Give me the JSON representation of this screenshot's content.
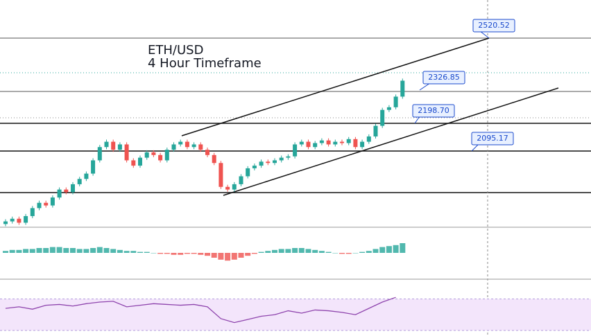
{
  "chart_data": {
    "type": "candlestick",
    "title": "ETH/USD",
    "subtitle": "4 Hour Timeframe",
    "ylim": [
      1808,
      2664
    ],
    "up_color": "#26a69a",
    "down_color": "#ef5350",
    "candles": [
      [
        1820,
        1838,
        1812,
        1830
      ],
      [
        1830,
        1848,
        1822,
        1840
      ],
      [
        1840,
        1848,
        1817,
        1825
      ],
      [
        1825,
        1858,
        1817,
        1850
      ],
      [
        1850,
        1888,
        1842,
        1880
      ],
      [
        1880,
        1908,
        1872,
        1900
      ],
      [
        1900,
        1908,
        1882,
        1890
      ],
      [
        1890,
        1928,
        1882,
        1920
      ],
      [
        1920,
        1958,
        1912,
        1950
      ],
      [
        1950,
        1958,
        1932,
        1940
      ],
      [
        1940,
        1978,
        1932,
        1970
      ],
      [
        1970,
        1998,
        1962,
        1990
      ],
      [
        1990,
        2018,
        1982,
        2010
      ],
      [
        2010,
        2068,
        2002,
        2060
      ],
      [
        2060,
        2118,
        2052,
        2110
      ],
      [
        2110,
        2138,
        2102,
        2130
      ],
      [
        2130,
        2138,
        2092,
        2100
      ],
      [
        2100,
        2128,
        2092,
        2120
      ],
      [
        2120,
        2128,
        2052,
        2060
      ],
      [
        2060,
        2068,
        2032,
        2040
      ],
      [
        2040,
        2078,
        2032,
        2070
      ],
      [
        2070,
        2098,
        2062,
        2090
      ],
      [
        2090,
        2098,
        2072,
        2080
      ],
      [
        2080,
        2088,
        2052,
        2060
      ],
      [
        2060,
        2108,
        2052,
        2100
      ],
      [
        2100,
        2128,
        2092,
        2120
      ],
      [
        2120,
        2138,
        2112,
        2130
      ],
      [
        2130,
        2138,
        2102,
        2110
      ],
      [
        2110,
        2128,
        2102,
        2120
      ],
      [
        2120,
        2128,
        2092,
        2100
      ],
      [
        2100,
        2108,
        2072,
        2080
      ],
      [
        2080,
        2088,
        2042,
        2050
      ],
      [
        2050,
        2058,
        1952,
        1960
      ],
      [
        1960,
        1968,
        1942,
        1950
      ],
      [
        1950,
        1978,
        1942,
        1970
      ],
      [
        1970,
        2008,
        1962,
        2000
      ],
      [
        2000,
        2038,
        1992,
        2030
      ],
      [
        2030,
        2048,
        2022,
        2040
      ],
      [
        2040,
        2063,
        2032,
        2055
      ],
      [
        2055,
        2063,
        2042,
        2050
      ],
      [
        2050,
        2068,
        2042,
        2060
      ],
      [
        2060,
        2078,
        2052,
        2070
      ],
      [
        2070,
        2083,
        2062,
        2075
      ],
      [
        2075,
        2128,
        2067,
        2120
      ],
      [
        2120,
        2138,
        2112,
        2130
      ],
      [
        2130,
        2138,
        2102,
        2110
      ],
      [
        2110,
        2133,
        2102,
        2125
      ],
      [
        2125,
        2143,
        2117,
        2135
      ],
      [
        2135,
        2143,
        2112,
        2120
      ],
      [
        2120,
        2138,
        2112,
        2130
      ],
      [
        2130,
        2138,
        2117,
        2125
      ],
      [
        2125,
        2148,
        2117,
        2140
      ],
      [
        2140,
        2148,
        2102,
        2110
      ],
      [
        2110,
        2138,
        2102,
        2130
      ],
      [
        2130,
        2158,
        2122,
        2150
      ],
      [
        2150,
        2198,
        2142,
        2190
      ],
      [
        2190,
        2258,
        2182,
        2250
      ],
      [
        2250,
        2268,
        2242,
        2260
      ],
      [
        2260,
        2308,
        2252,
        2300
      ],
      [
        2300,
        2368,
        2292,
        2360
      ]
    ],
    "callouts": [
      "2520.52",
      "2326.85",
      "2198.70",
      "2095.17"
    ],
    "macd_hist": [
      2,
      3,
      3,
      4,
      4,
      5,
      5,
      6,
      6,
      5,
      5,
      4,
      4,
      5,
      6,
      5,
      4,
      3,
      2,
      2,
      1,
      1,
      0,
      -1,
      -1,
      -2,
      -2,
      -1,
      -1,
      -2,
      -3,
      -5,
      -7,
      -8,
      -7,
      -5,
      -3,
      -1,
      1,
      2,
      3,
      4,
      4,
      5,
      5,
      4,
      3,
      2,
      1,
      0,
      -1,
      -1,
      0,
      1,
      2,
      4,
      6,
      7,
      8,
      10
    ],
    "macd_ylim": [
      -25,
      25
    ],
    "rsi": [
      58,
      60,
      57,
      62,
      63,
      61,
      64,
      66,
      67,
      60,
      62,
      64,
      63,
      62,
      63,
      60,
      45,
      40,
      44,
      48,
      50,
      55,
      52,
      56,
      55,
      53,
      50,
      58,
      66,
      72
    ],
    "rsi_ylim": [
      23,
      95
    ],
    "rsi_bands": [
      30,
      70
    ]
  }
}
